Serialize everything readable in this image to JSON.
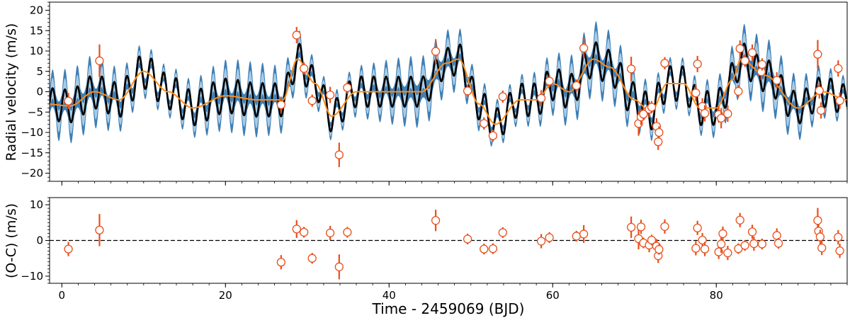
{
  "chart_data": [
    {
      "type": "scatter",
      "panel": "top",
      "title": "",
      "xlabel": "",
      "ylabel": "Radial velocity (m/s)",
      "xlim": [
        -1.5,
        96
      ],
      "ylim": [
        -22,
        22
      ],
      "yticks": [
        -20,
        -15,
        -10,
        -5,
        0,
        5,
        10,
        15,
        20
      ],
      "grid": false,
      "colors": {
        "data": "#e8501c",
        "model": "#000000",
        "band": "#3f7fb5",
        "band_inner": "#a6cbe6",
        "trend": "#ff8c1a"
      },
      "points": [
        {
          "x": 0.8,
          "y": -2.3,
          "err": 2.0
        },
        {
          "x": 4.6,
          "y": 7.6,
          "err": 4.0
        },
        {
          "x": 26.8,
          "y": -3.2,
          "err": 2.0
        },
        {
          "x": 28.7,
          "y": 13.9,
          "err": 2.0
        },
        {
          "x": 29.6,
          "y": 5.7,
          "err": 1.5
        },
        {
          "x": 30.6,
          "y": -2.2,
          "err": 1.5
        },
        {
          "x": 32.8,
          "y": -0.8,
          "err": 2.0
        },
        {
          "x": 33.9,
          "y": -15.5,
          "err": 3.0
        },
        {
          "x": 34.9,
          "y": 1.0,
          "err": 1.5
        },
        {
          "x": 45.7,
          "y": 9.9,
          "err": 3.0
        },
        {
          "x": 49.6,
          "y": 0.2,
          "err": 1.5
        },
        {
          "x": 51.6,
          "y": -7.8,
          "err": 1.5
        },
        {
          "x": 52.7,
          "y": -10.8,
          "err": 1.5
        },
        {
          "x": 53.9,
          "y": -1.2,
          "err": 1.5
        },
        {
          "x": 58.6,
          "y": -1.6,
          "err": 2.0
        },
        {
          "x": 59.6,
          "y": 2.6,
          "err": 1.5
        },
        {
          "x": 62.9,
          "y": 1.5,
          "err": 1.5
        },
        {
          "x": 63.8,
          "y": 10.7,
          "err": 2.5
        },
        {
          "x": 69.6,
          "y": 5.6,
          "err": 3.0
        },
        {
          "x": 70.5,
          "y": -7.8,
          "err": 3.0
        },
        {
          "x": 70.8,
          "y": -6.2,
          "err": 2.0
        },
        {
          "x": 71.1,
          "y": -5.5,
          "err": 1.5
        },
        {
          "x": 71.8,
          "y": -4.3,
          "err": 2.0
        },
        {
          "x": 72.1,
          "y": -3.8,
          "err": 1.5
        },
        {
          "x": 72.7,
          "y": -8.5,
          "err": 2.0
        },
        {
          "x": 72.9,
          "y": -12.3,
          "err": 2.0
        },
        {
          "x": 73.0,
          "y": -10.0,
          "err": 1.5
        },
        {
          "x": 73.7,
          "y": 7.0,
          "err": 1.5
        },
        {
          "x": 77.5,
          "y": -0.3,
          "err": 2.0
        },
        {
          "x": 77.7,
          "y": 6.8,
          "err": 2.0
        },
        {
          "x": 78.3,
          "y": -3.6,
          "err": 2.0
        },
        {
          "x": 78.6,
          "y": -5.3,
          "err": 2.0
        },
        {
          "x": 80.3,
          "y": -5.6,
          "err": 2.0
        },
        {
          "x": 80.6,
          "y": -6.5,
          "err": 2.5
        },
        {
          "x": 81.4,
          "y": -5.4,
          "err": 2.0
        },
        {
          "x": 82.7,
          "y": 0.1,
          "err": 1.5
        },
        {
          "x": 82.9,
          "y": 10.6,
          "err": 2.0
        },
        {
          "x": 83.5,
          "y": 7.6,
          "err": 1.5
        },
        {
          "x": 84.4,
          "y": 9.6,
          "err": 2.0
        },
        {
          "x": 85.5,
          "y": 4.9,
          "err": 2.0
        },
        {
          "x": 85.6,
          "y": 6.7,
          "err": 1.5
        },
        {
          "x": 87.4,
          "y": 2.8,
          "err": 2.0
        },
        {
          "x": 92.4,
          "y": 9.2,
          "err": 3.5
        },
        {
          "x": 92.6,
          "y": 0.3,
          "err": 2.0
        },
        {
          "x": 92.8,
          "y": -4.6,
          "err": 2.0
        },
        {
          "x": 94.9,
          "y": 5.7,
          "err": 2.0
        },
        {
          "x": 95.1,
          "y": -2.2,
          "err": 2.0
        }
      ]
    },
    {
      "type": "scatter",
      "panel": "bottom",
      "title": "",
      "xlabel": "Time - 2459069 (BJD)",
      "ylabel": "(O-C) (m/s)",
      "xlim": [
        -1.5,
        96
      ],
      "ylim": [
        -12,
        12
      ],
      "xticks": [
        0,
        20,
        40,
        60,
        80
      ],
      "yticks": [
        -10,
        0,
        10
      ],
      "reference_line": {
        "y": 0,
        "style": "dashed"
      },
      "points": [
        {
          "x": 0.8,
          "y": -2.4,
          "err": 2.0
        },
        {
          "x": 4.6,
          "y": 2.9,
          "err": 4.5
        },
        {
          "x": 26.8,
          "y": -6.1,
          "err": 2.0
        },
        {
          "x": 28.7,
          "y": 3.2,
          "err": 2.5
        },
        {
          "x": 29.6,
          "y": 2.3,
          "err": 1.5
        },
        {
          "x": 30.6,
          "y": -5.0,
          "err": 1.5
        },
        {
          "x": 32.8,
          "y": 2.1,
          "err": 2.0
        },
        {
          "x": 33.9,
          "y": -7.4,
          "err": 3.5
        },
        {
          "x": 34.9,
          "y": 2.3,
          "err": 1.5
        },
        {
          "x": 45.7,
          "y": 5.6,
          "err": 3.0
        },
        {
          "x": 49.6,
          "y": 0.4,
          "err": 1.5
        },
        {
          "x": 51.6,
          "y": -2.4,
          "err": 1.5
        },
        {
          "x": 52.7,
          "y": -2.3,
          "err": 1.5
        },
        {
          "x": 53.9,
          "y": 2.2,
          "err": 1.5
        },
        {
          "x": 58.6,
          "y": -0.2,
          "err": 2.0
        },
        {
          "x": 59.6,
          "y": 0.8,
          "err": 1.5
        },
        {
          "x": 62.9,
          "y": 1.2,
          "err": 1.5
        },
        {
          "x": 63.8,
          "y": 1.8,
          "err": 2.5
        },
        {
          "x": 69.6,
          "y": 3.7,
          "err": 3.0
        },
        {
          "x": 70.5,
          "y": 0.5,
          "err": 3.0
        },
        {
          "x": 70.8,
          "y": 3.8,
          "err": 2.0
        },
        {
          "x": 71.1,
          "y": -0.7,
          "err": 1.5
        },
        {
          "x": 71.8,
          "y": -1.3,
          "err": 2.0
        },
        {
          "x": 72.1,
          "y": 0.1,
          "err": 1.5
        },
        {
          "x": 72.7,
          "y": -1.6,
          "err": 2.0
        },
        {
          "x": 72.9,
          "y": -4.3,
          "err": 2.0
        },
        {
          "x": 73.0,
          "y": -2.5,
          "err": 1.5
        },
        {
          "x": 73.7,
          "y": 3.9,
          "err": 2.0
        },
        {
          "x": 77.5,
          "y": -2.2,
          "err": 2.0
        },
        {
          "x": 77.7,
          "y": 3.5,
          "err": 2.0
        },
        {
          "x": 78.3,
          "y": 0.1,
          "err": 2.0
        },
        {
          "x": 78.6,
          "y": -2.4,
          "err": 2.0
        },
        {
          "x": 80.3,
          "y": -3.2,
          "err": 2.0
        },
        {
          "x": 80.6,
          "y": -1.0,
          "err": 2.5
        },
        {
          "x": 80.8,
          "y": 1.9,
          "err": 2.0
        },
        {
          "x": 81.4,
          "y": -3.5,
          "err": 2.0
        },
        {
          "x": 82.7,
          "y": -2.3,
          "err": 1.5
        },
        {
          "x": 82.9,
          "y": 5.7,
          "err": 2.0
        },
        {
          "x": 83.5,
          "y": -1.4,
          "err": 1.5
        },
        {
          "x": 84.4,
          "y": 2.4,
          "err": 2.0
        },
        {
          "x": 84.6,
          "y": -0.9,
          "err": 2.0
        },
        {
          "x": 85.6,
          "y": -1.0,
          "err": 1.5
        },
        {
          "x": 87.4,
          "y": 1.4,
          "err": 2.0
        },
        {
          "x": 87.6,
          "y": -0.8,
          "err": 1.5
        },
        {
          "x": 92.4,
          "y": 5.6,
          "err": 3.5
        },
        {
          "x": 92.5,
          "y": 2.6,
          "err": 2.0
        },
        {
          "x": 92.7,
          "y": 1.0,
          "err": 2.0
        },
        {
          "x": 92.9,
          "y": -2.1,
          "err": 2.0
        },
        {
          "x": 94.9,
          "y": 0.9,
          "err": 2.0
        },
        {
          "x": 95.1,
          "y": -2.9,
          "err": 2.0
        }
      ]
    }
  ]
}
